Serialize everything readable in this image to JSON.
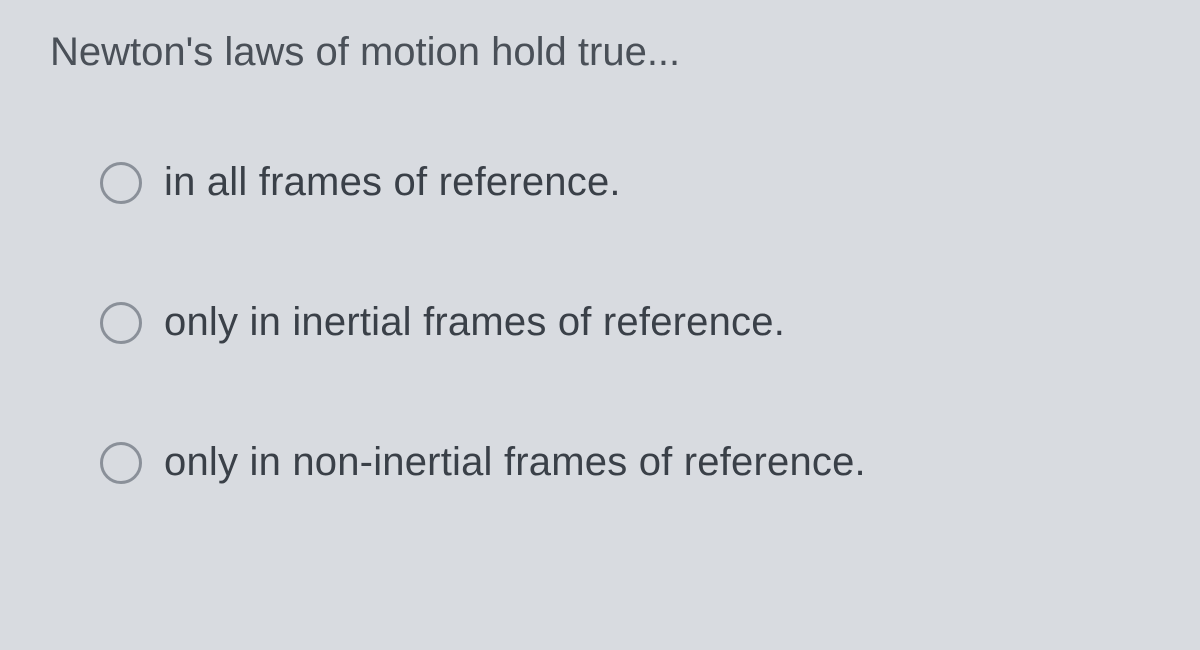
{
  "question": {
    "text": "Newton's laws of motion hold true...",
    "text_color": "#4a5058",
    "font_size": 40,
    "font_weight": 400
  },
  "options": [
    {
      "label": "in all frames of reference.",
      "selected": false
    },
    {
      "label": "only in inertial frames of reference.",
      "selected": false
    },
    {
      "label": "only in non-inertial frames of reference.",
      "selected": false
    }
  ],
  "styling": {
    "background_color": "#d8dbe0",
    "option_text_color": "#3a4048",
    "option_font_size": 40,
    "radio_border_color": "#8a9099",
    "radio_size": 42,
    "radio_border_width": 3
  }
}
